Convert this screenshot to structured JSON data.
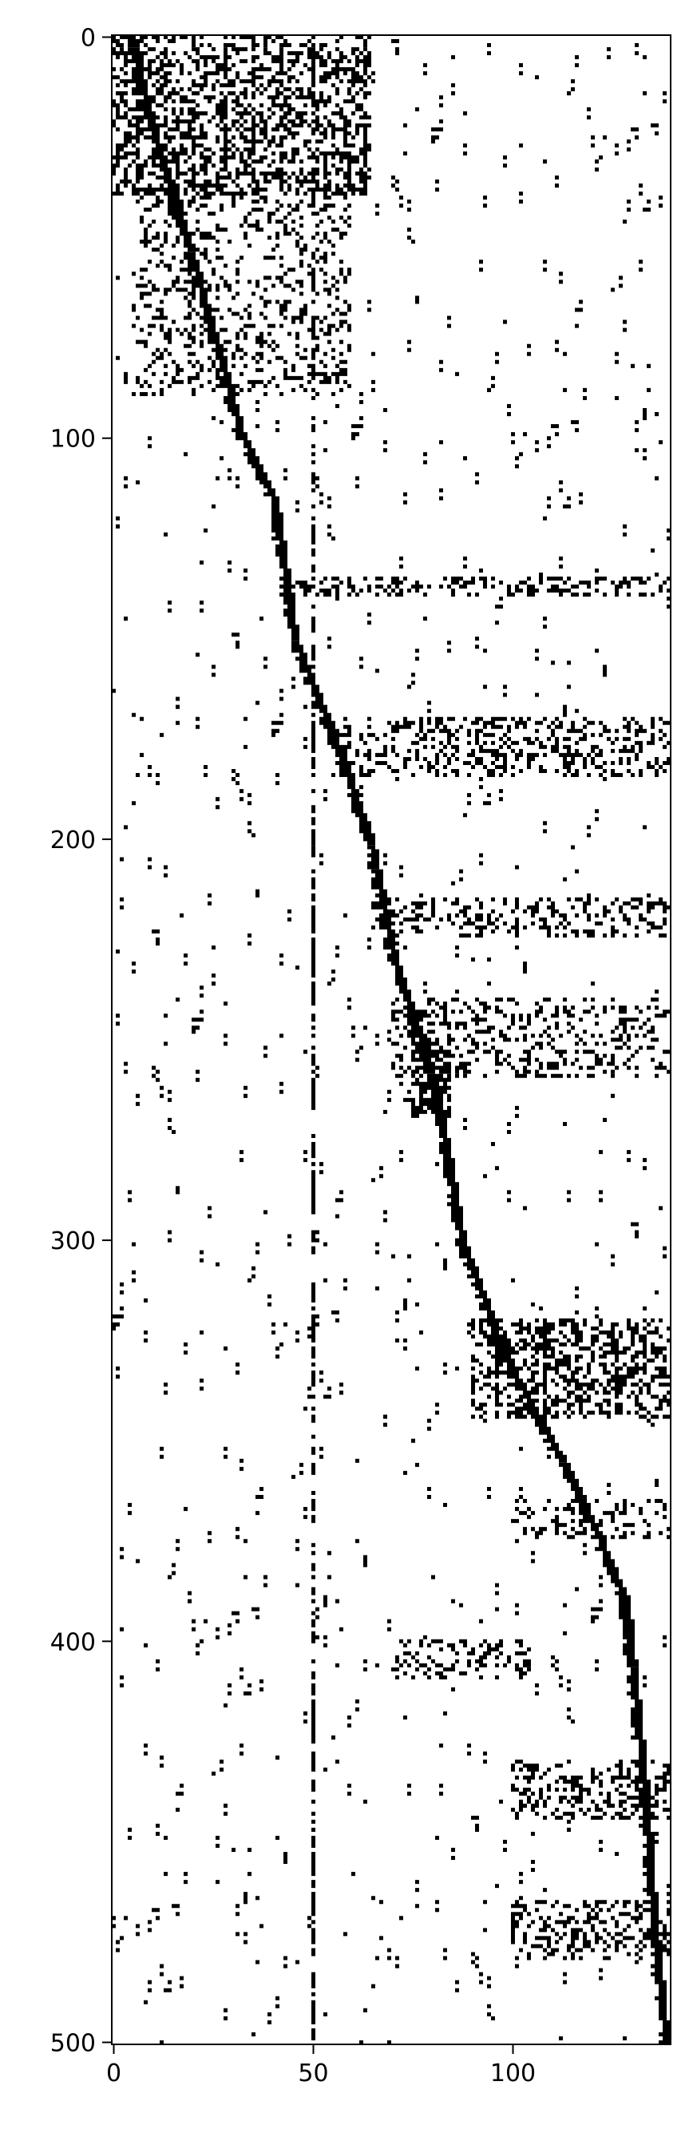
{
  "chart_data": {
    "type": "heatmap",
    "subtype": "binary sparsity pattern (matrix spy plot)",
    "title": "",
    "xlabel": "",
    "ylabel": "",
    "rows": 501,
    "cols": 140,
    "xlim": [
      -0.5,
      139.5
    ],
    "ylim": [
      500.5,
      -0.5
    ],
    "y_axis_inverted": true,
    "xticks": [
      0,
      50,
      100
    ],
    "xtick_labels": [
      "0",
      "50",
      "100"
    ],
    "yticks": [
      0,
      100,
      200,
      300,
      400,
      500
    ],
    "ytick_labels": [
      "0",
      "100",
      "200",
      "300",
      "400",
      "500"
    ],
    "grid": false,
    "colors": {
      "nonzero": "#000000",
      "zero": "#ffffff",
      "axes": "#000000"
    },
    "diagonal_path": [
      [
        0,
        4
      ],
      [
        25,
        10
      ],
      [
        50,
        18
      ],
      [
        75,
        25
      ],
      [
        100,
        32
      ],
      [
        115,
        40
      ],
      [
        150,
        45
      ],
      [
        175,
        55
      ],
      [
        200,
        64
      ],
      [
        230,
        70
      ],
      [
        260,
        80
      ],
      [
        300,
        87
      ],
      [
        330,
        98
      ],
      [
        360,
        115
      ],
      [
        390,
        128
      ],
      [
        410,
        130
      ],
      [
        440,
        133
      ],
      [
        470,
        135
      ],
      [
        500,
        138
      ]
    ],
    "dense_blocks": [
      {
        "rows": [
          0,
          40
        ],
        "cols": [
          0,
          65
        ],
        "density": 0.38
      },
      {
        "rows": [
          40,
          90
        ],
        "cols": [
          5,
          60
        ],
        "density": 0.22
      },
      {
        "rows": [
          135,
          140
        ],
        "cols": [
          45,
          140
        ],
        "density": 0.35
      },
      {
        "rows": [
          170,
          185
        ],
        "cols": [
          55,
          140
        ],
        "density": 0.3
      },
      {
        "rows": [
          215,
          225
        ],
        "cols": [
          65,
          140
        ],
        "density": 0.28
      },
      {
        "rows": [
          240,
          260
        ],
        "cols": [
          70,
          140
        ],
        "density": 0.25
      },
      {
        "rows": [
          250,
          270
        ],
        "cols": [
          75,
          85
        ],
        "density": 0.55
      },
      {
        "rows": [
          320,
          345
        ],
        "cols": [
          90,
          140
        ],
        "density": 0.4
      },
      {
        "rows": [
          365,
          375
        ],
        "cols": [
          100,
          140
        ],
        "density": 0.22
      },
      {
        "rows": [
          400,
          410
        ],
        "cols": [
          70,
          105
        ],
        "density": 0.3
      },
      {
        "rows": [
          430,
          445
        ],
        "cols": [
          100,
          140
        ],
        "density": 0.3
      },
      {
        "rows": [
          465,
          480
        ],
        "cols": [
          100,
          140
        ],
        "density": 0.3
      }
    ],
    "column_stripes": [
      {
        "col": 6,
        "rows": [
          0,
          40
        ]
      },
      {
        "col": 28,
        "rows": [
          0,
          40
        ]
      },
      {
        "col": 42,
        "rows": [
          0,
          40
        ]
      },
      {
        "col": 50,
        "rows": [
          0,
          500
        ]
      },
      {
        "col": 63,
        "rows": [
          0,
          40
        ]
      },
      {
        "col": 35,
        "rows": [
          0,
          40
        ]
      },
      {
        "col": 20,
        "rows": [
          0,
          40
        ]
      },
      {
        "col": 96,
        "rows": [
          320,
          345
        ]
      },
      {
        "col": 108,
        "rows": [
          320,
          345
        ]
      }
    ],
    "background_density": 0.012
  }
}
